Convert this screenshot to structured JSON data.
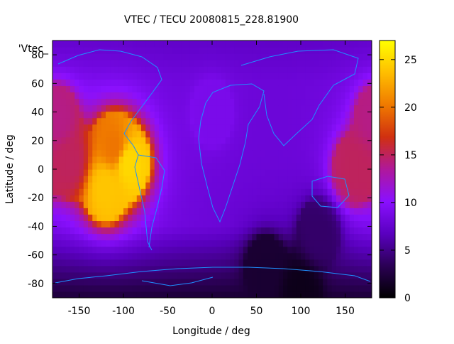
{
  "chart_data": {
    "type": "heatmap",
    "title": "VTEC / TECU 20080815_228.81900",
    "xlabel": "Longitude / deg",
    "ylabel": "Latitude / deg",
    "legend_key": "'Vtec_",
    "xlim": [
      -180,
      180
    ],
    "ylim": [
      -90,
      90
    ],
    "x_ticks": [
      -150,
      -100,
      -50,
      0,
      50,
      100,
      150
    ],
    "y_ticks": [
      -80,
      -60,
      -40,
      -20,
      0,
      20,
      40,
      60,
      80
    ],
    "colorbar": {
      "range": [
        0,
        27
      ],
      "ticks": [
        0,
        5,
        10,
        15,
        20,
        25
      ],
      "palette": [
        "#000000",
        "#2b0055",
        "#5a00c0",
        "#8a10ff",
        "#b0189a",
        "#d03010",
        "#f07a00",
        "#ffbe00",
        "#ffff00"
      ]
    },
    "grid": false,
    "values_description_anchors": [
      {
        "lon": -95,
        "lat": 5,
        "value": 25
      },
      {
        "lon": -120,
        "lat": -12,
        "value": 24
      },
      {
        "lon": -110,
        "lat": 15,
        "value": 20
      },
      {
        "lon": -160,
        "lat": 5,
        "value": 15
      },
      {
        "lon": 160,
        "lat": 0,
        "value": 15
      },
      {
        "lon": -175,
        "lat": 35,
        "value": 14
      },
      {
        "lon": 0,
        "lat": 40,
        "value": 9
      },
      {
        "lon": 60,
        "lat": -70,
        "value": 2
      },
      {
        "lon": 100,
        "lat": -85,
        "value": 1
      },
      {
        "lon": 120,
        "lat": -45,
        "value": 4
      }
    ]
  }
}
